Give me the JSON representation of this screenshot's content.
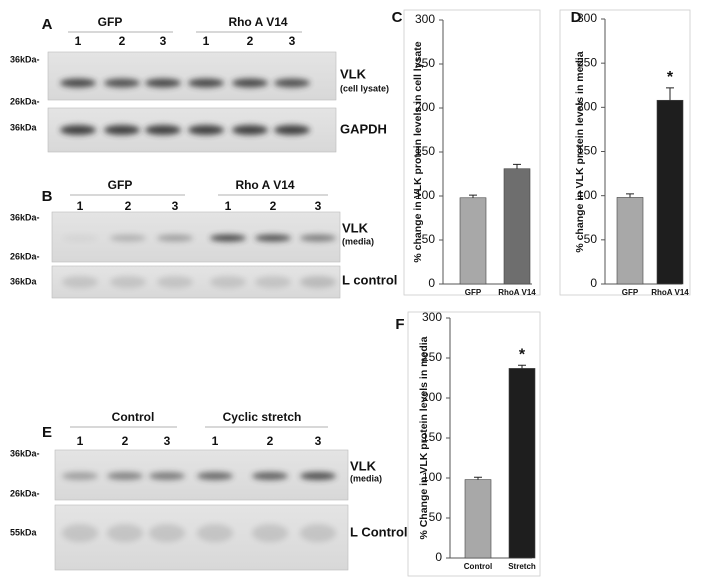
{
  "blots": [
    {
      "letter": "A",
      "groups": [
        "GFP",
        "Rho A V14"
      ],
      "lanes": [
        "1",
        "2",
        "3",
        "1",
        "2",
        "3"
      ],
      "markers": [
        "36kDa-",
        "26kDa-",
        "36kDa"
      ],
      "labels": [
        "VLK",
        "(cell lysate)",
        "GAPDH"
      ]
    },
    {
      "letter": "B",
      "groups": [
        "GFP",
        "Rho A V14"
      ],
      "lanes": [
        "1",
        "2",
        "3",
        "1",
        "2",
        "3"
      ],
      "markers": [
        "36kDa-",
        "26kDa-",
        "36kDa"
      ],
      "labels": [
        "VLK",
        "(media)",
        "L control"
      ]
    },
    {
      "letter": "E",
      "groups": [
        "Control",
        "Cyclic stretch"
      ],
      "lanes": [
        "1",
        "2",
        "3",
        "1",
        "2",
        "3"
      ],
      "markers": [
        "36kDa-",
        "26kDa-",
        "55kDa"
      ],
      "labels": [
        "VLK",
        "(media)",
        "L Control"
      ]
    }
  ],
  "chart_data": [
    {
      "type": "bar",
      "letter": "C",
      "ylabel": "% change in VLK protein levels in cell lysate",
      "categories": [
        "GFP",
        "RhoA V14"
      ],
      "values": [
        98,
        131
      ],
      "errors": [
        3,
        5
      ],
      "colors": [
        "#a8a8a8",
        "#6e6e6e"
      ],
      "ylim": [
        0,
        300
      ],
      "yticks": [
        0,
        50,
        100,
        150,
        200,
        250,
        300
      ]
    },
    {
      "type": "bar",
      "letter": "D",
      "ylabel": "% change in VLK protein levels in media",
      "categories": [
        "GFP",
        "RhoA V14"
      ],
      "values": [
        98,
        208
      ],
      "errors": [
        4,
        14
      ],
      "colors": [
        "#a8a8a8",
        "#1e1e1e"
      ],
      "ylim": [
        0,
        300
      ],
      "yticks": [
        0,
        50,
        100,
        150,
        200,
        250,
        300
      ],
      "annotation": "*"
    },
    {
      "type": "bar",
      "letter": "F",
      "ylabel": "% Change in VLK protein levels  in media",
      "categories": [
        "Control",
        "Stretch"
      ],
      "values": [
        98,
        237
      ],
      "errors": [
        3,
        4
      ],
      "colors": [
        "#a8a8a8",
        "#1e1e1e"
      ],
      "ylim": [
        0,
        300
      ],
      "yticks": [
        0,
        50,
        100,
        150,
        200,
        250,
        300
      ],
      "annotation": "*"
    }
  ]
}
